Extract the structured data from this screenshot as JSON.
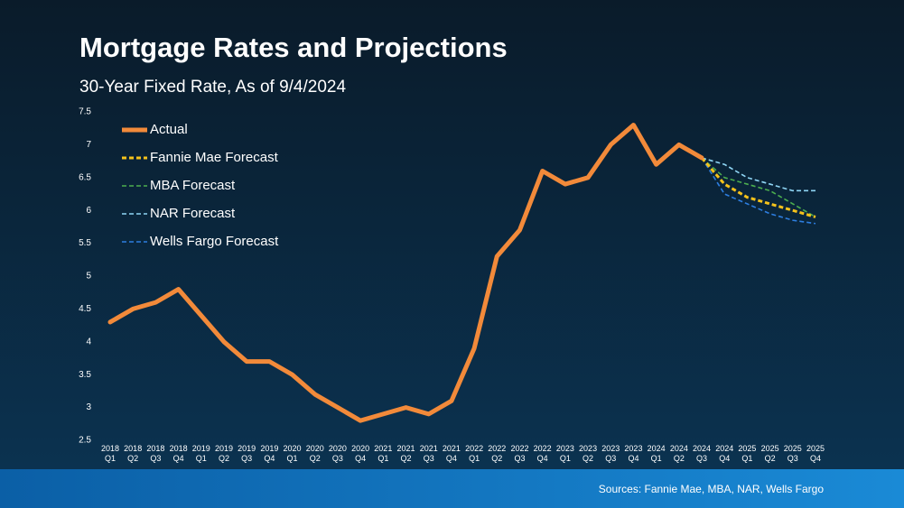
{
  "chart_data": {
    "type": "line",
    "title": "Mortgage Rates and Projections",
    "subtitle": "30-Year Fixed Rate, As of 9/4/2024",
    "source": "Sources: Fannie Mae, MBA, NAR, Wells Fargo",
    "categories": [
      "2018 Q1",
      "2018 Q2",
      "2018 Q3",
      "2018 Q4",
      "2019 Q1",
      "2019 Q2",
      "2019 Q3",
      "2019 Q4",
      "2020 Q1",
      "2020 Q2",
      "2020 Q3",
      "2020 Q4",
      "2021 Q1",
      "2021 Q2",
      "2021 Q3",
      "2021 Q4",
      "2022 Q1",
      "2022 Q2",
      "2022 Q3",
      "2022 Q4",
      "2023 Q1",
      "2023 Q2",
      "2023 Q3",
      "2023 Q4",
      "2024 Q1",
      "2024 Q2",
      "2024 Q3",
      "2024 Q4",
      "2025 Q1",
      "2025 Q2",
      "2025 Q3",
      "2025 Q4"
    ],
    "series": [
      {
        "name": "Actual",
        "color": "#f28a3a",
        "dashed": false,
        "values": [
          4.3,
          4.5,
          4.6,
          4.8,
          4.4,
          4.0,
          3.7,
          3.7,
          3.5,
          3.2,
          3.0,
          2.8,
          2.9,
          3.0,
          2.9,
          3.1,
          3.9,
          5.3,
          5.7,
          6.6,
          6.4,
          6.5,
          7.0,
          7.3,
          6.7,
          7.0,
          6.8,
          null,
          null,
          null,
          null,
          null
        ]
      },
      {
        "name": "Fannie Mae Forecast",
        "color": "#f5c21b",
        "dashed": true,
        "values": [
          null,
          null,
          null,
          null,
          null,
          null,
          null,
          null,
          null,
          null,
          null,
          null,
          null,
          null,
          null,
          null,
          null,
          null,
          null,
          null,
          null,
          null,
          null,
          null,
          null,
          null,
          6.8,
          6.4,
          6.2,
          6.1,
          6.0,
          5.9
        ]
      },
      {
        "name": "MBA Forecast",
        "color": "#4cae4f",
        "dashed": true,
        "values": [
          null,
          null,
          null,
          null,
          null,
          null,
          null,
          null,
          null,
          null,
          null,
          null,
          null,
          null,
          null,
          null,
          null,
          null,
          null,
          null,
          null,
          null,
          null,
          null,
          null,
          null,
          6.8,
          6.5,
          6.4,
          6.3,
          6.1,
          5.9
        ]
      },
      {
        "name": "NAR Forecast",
        "color": "#8fd6f5",
        "dashed": true,
        "values": [
          null,
          null,
          null,
          null,
          null,
          null,
          null,
          null,
          null,
          null,
          null,
          null,
          null,
          null,
          null,
          null,
          null,
          null,
          null,
          null,
          null,
          null,
          null,
          null,
          null,
          null,
          6.8,
          6.7,
          6.5,
          6.4,
          6.3,
          6.3
        ]
      },
      {
        "name": "Wells Fargo Forecast",
        "color": "#2d7ee0",
        "dashed": true,
        "values": [
          null,
          null,
          null,
          null,
          null,
          null,
          null,
          null,
          null,
          null,
          null,
          null,
          null,
          null,
          null,
          null,
          null,
          null,
          null,
          null,
          null,
          null,
          null,
          null,
          null,
          null,
          6.8,
          6.25,
          6.1,
          5.95,
          5.85,
          5.8
        ]
      }
    ],
    "ylim": [
      2.5,
      7.5
    ],
    "yticks": [
      2.5,
      3,
      3.5,
      4,
      4.5,
      5,
      5.5,
      6,
      6.5,
      7,
      7.5
    ],
    "grid": false,
    "legend": "top-left"
  }
}
